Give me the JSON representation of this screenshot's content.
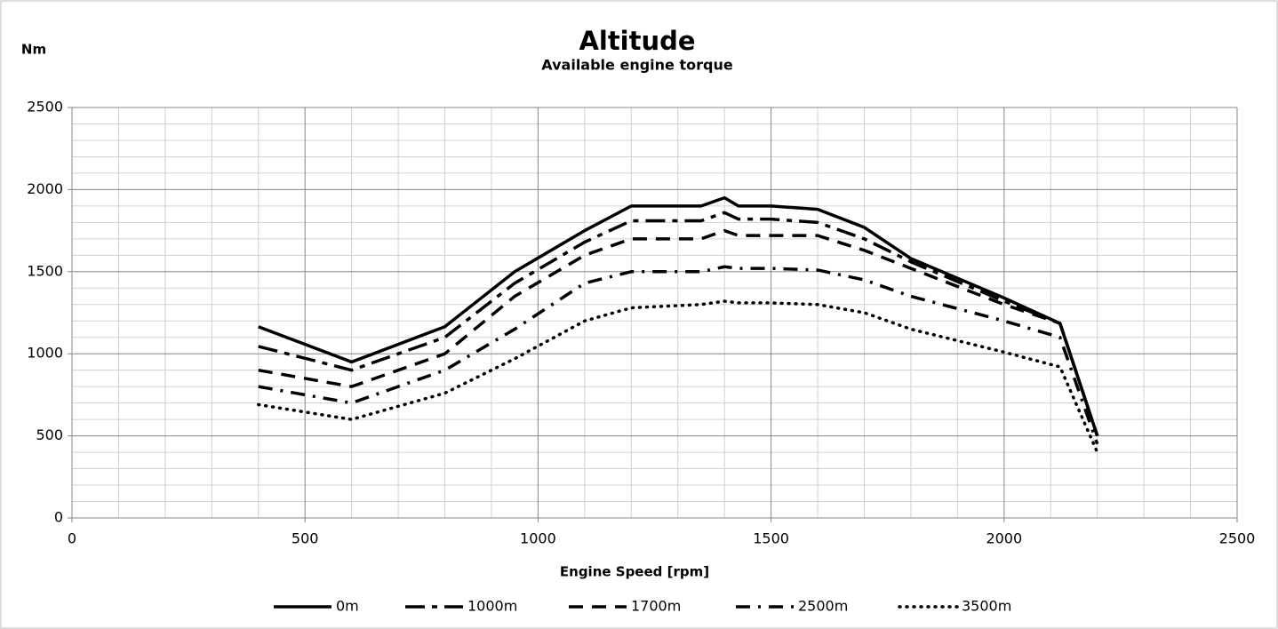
{
  "chart_data": {
    "type": "line",
    "title": "Altitude",
    "subtitle": "Available engine torque",
    "y_label": "Nm",
    "x_label": "Engine Speed [rpm]",
    "x": [
      400,
      600,
      800,
      950,
      1100,
      1200,
      1350,
      1400,
      1430,
      1500,
      1600,
      1700,
      1800,
      2000,
      2120,
      2200
    ],
    "series": [
      {
        "name": "0m",
        "color": "#000000",
        "dash": "solid",
        "values": [
          1165,
          950,
          1165,
          1500,
          1750,
          1900,
          1900,
          1950,
          1900,
          1900,
          1880,
          1770,
          1580,
          1340,
          1185,
          500
        ]
      },
      {
        "name": "1000m",
        "color": "#000000",
        "dash": "long-dash-dot",
        "values": [
          1045,
          900,
          1100,
          1430,
          1680,
          1810,
          1810,
          1860,
          1820,
          1820,
          1800,
          1700,
          1560,
          1320,
          1185,
          500
        ]
      },
      {
        "name": "1700m",
        "color": "#000000",
        "dash": "dash",
        "values": [
          900,
          800,
          1000,
          1350,
          1600,
          1700,
          1700,
          1750,
          1720,
          1720,
          1720,
          1630,
          1520,
          1300,
          1185,
          500
        ]
      },
      {
        "name": "2500m",
        "color": "#000000",
        "dash": "dash-dot",
        "values": [
          800,
          700,
          900,
          1150,
          1430,
          1500,
          1500,
          1530,
          1520,
          1520,
          1510,
          1450,
          1350,
          1200,
          1100,
          450
        ]
      },
      {
        "name": "3500m",
        "color": "#000000",
        "dash": "dot",
        "values": [
          690,
          600,
          760,
          970,
          1200,
          1280,
          1300,
          1320,
          1310,
          1310,
          1300,
          1250,
          1150,
          1010,
          920,
          400
        ]
      }
    ],
    "xlim": [
      0,
      2500
    ],
    "xticks": [
      0,
      500,
      1000,
      1500,
      2000,
      2500
    ],
    "ylim": [
      0,
      2500
    ],
    "yticks": [
      0,
      500,
      1000,
      1500,
      2000,
      2500
    ],
    "grid": true,
    "minor_grid": true,
    "legend": "bottom"
  }
}
